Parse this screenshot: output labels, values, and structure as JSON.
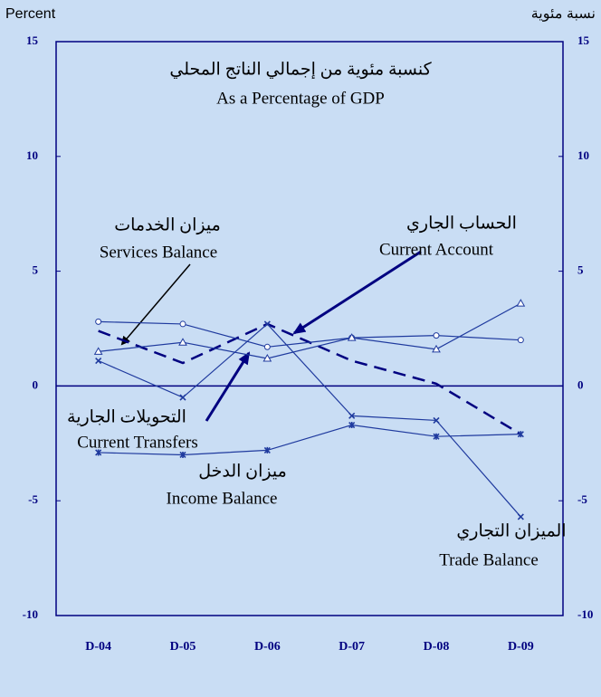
{
  "chart_data": {
    "type": "line",
    "title": "كنسبة مئوية من إجمالي الناتج المحلي",
    "subtitle": "As a Percentage of GDP",
    "y_label": "Percent",
    "y2_label": "نسبة مئوية",
    "categories": [
      "D-04",
      "D-05",
      "D-06",
      "D-07",
      "D-08",
      "D-09"
    ],
    "series": [
      {
        "name": "Current Account",
        "color": "#000080",
        "dash": true,
        "marker": "none",
        "values": [
          2.4,
          1.0,
          2.7,
          1.1,
          0.1,
          -2.1
        ]
      },
      {
        "name": "Services Balance",
        "color": "#1f3a9e",
        "marker": "circle",
        "values": [
          2.8,
          2.7,
          1.7,
          2.1,
          2.2,
          2.0
        ]
      },
      {
        "name": "Current Transfers",
        "color": "#1f3a9e",
        "marker": "triangle",
        "values": [
          1.5,
          1.9,
          1.2,
          2.1,
          1.6,
          3.6
        ]
      },
      {
        "name": "Trade Balance",
        "color": "#1f3a9e",
        "marker": "x",
        "values": [
          1.1,
          -0.5,
          2.7,
          -1.3,
          -1.5,
          -5.7
        ]
      },
      {
        "name": "Income Balance",
        "color": "#1f3a9e",
        "marker": "star",
        "values": [
          -2.9,
          -3.0,
          -2.8,
          -1.7,
          -2.2,
          -2.1
        ]
      }
    ],
    "annotations": [
      {
        "arabic": "ميزان الخدمات",
        "english": "Services Balance"
      },
      {
        "arabic": "الحساب الجاري",
        "english": "Current Account"
      },
      {
        "arabic": "التحويلات الجارية",
        "english": "Current Transfers"
      },
      {
        "arabic": "ميزان الدخل",
        "english": "Income Balance"
      },
      {
        "arabic": "الميزان التجاري",
        "english": "Trade Balance"
      }
    ],
    "ylim": [
      -10,
      15
    ],
    "yticks": [
      -10,
      -5,
      0,
      5,
      10,
      15
    ],
    "y2lim": [
      -10,
      15
    ],
    "y2ticks": [
      -10,
      -5,
      0,
      5,
      10,
      15
    ],
    "grid": false
  }
}
